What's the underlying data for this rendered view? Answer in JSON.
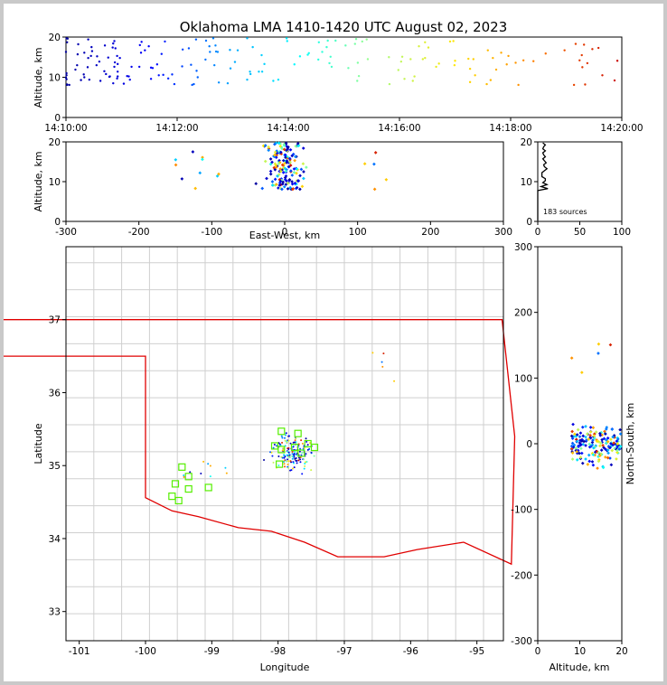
{
  "title": "Oklahoma LMA 1410-1420 UTC August 02, 2023",
  "colors": {
    "state_border": "#e00000",
    "county": "#c8c8c8",
    "station": "#00ee00",
    "page_bg": "#c9c9c9",
    "axes": "#000000"
  },
  "chart_data": [
    {
      "id": "time_height",
      "type": "scatter",
      "title": "",
      "xlabel": "",
      "ylabel": "Altitude, km",
      "xlim": [
        "14:10:00",
        "14:20:00"
      ],
      "ylim": [
        0,
        20
      ],
      "xticks": [
        "14:10:00",
        "14:12:00",
        "14:14:00",
        "14:16:00",
        "14:18:00",
        "14:20:00"
      ],
      "yticks": [
        0,
        10,
        20
      ],
      "color_by": "time",
      "points": []
    },
    {
      "id": "ew_height",
      "type": "scatter",
      "title": "",
      "xlabel": "East-West, km",
      "ylabel": "Altitude, km",
      "xlim": [
        -300,
        300
      ],
      "ylim": [
        0,
        20
      ],
      "xticks": [
        -300,
        -200,
        -100,
        0,
        100,
        200,
        300
      ],
      "yticks": [
        0,
        10,
        20
      ],
      "color_by": "time",
      "points": []
    },
    {
      "id": "height_histogram",
      "type": "scatter",
      "title": "",
      "xlabel": "",
      "ylabel": "",
      "xlim": [
        0,
        100
      ],
      "ylim": [
        0,
        20
      ],
      "xticks": [
        0,
        50,
        100
      ],
      "yticks": [
        0,
        10,
        20
      ],
      "annotation": "183 sources",
      "points": []
    },
    {
      "id": "plan_view",
      "type": "scatter",
      "title": "",
      "xlabel": "Longitude",
      "ylabel": "Latitude",
      "xlim": [
        -101.2,
        -94.6
      ],
      "ylim": [
        32.6,
        38.0
      ],
      "xticks": [
        -101,
        -100,
        -99,
        -98,
        -97,
        -96,
        -95
      ],
      "yticks": [
        33,
        34,
        35,
        36,
        37
      ],
      "color_by": "time",
      "stations": [
        [
          -97.95,
          35.47
        ],
        [
          -97.7,
          35.44
        ],
        [
          -97.55,
          35.3
        ],
        [
          -97.45,
          35.25
        ],
        [
          -97.95,
          35.22
        ],
        [
          -97.75,
          35.25
        ],
        [
          -98.05,
          35.27
        ],
        [
          -97.98,
          35.02
        ],
        [
          -97.65,
          35.17
        ],
        [
          -99.45,
          34.98
        ],
        [
          -99.35,
          34.85
        ],
        [
          -99.55,
          34.75
        ],
        [
          -99.35,
          34.68
        ],
        [
          -99.05,
          34.7
        ],
        [
          -99.6,
          34.58
        ],
        [
          -99.5,
          34.52
        ]
      ],
      "points": []
    },
    {
      "id": "height_ns",
      "type": "scatter",
      "title": "",
      "xlabel": "Altitude, km",
      "ylabel": "North-South, km",
      "xlim": [
        0,
        20
      ],
      "ylim": [
        -300,
        300
      ],
      "xticks": [
        0,
        10,
        20
      ],
      "yticks": [
        -300,
        -200,
        -100,
        0,
        100,
        200,
        300
      ],
      "color_by": "time",
      "points": []
    }
  ]
}
